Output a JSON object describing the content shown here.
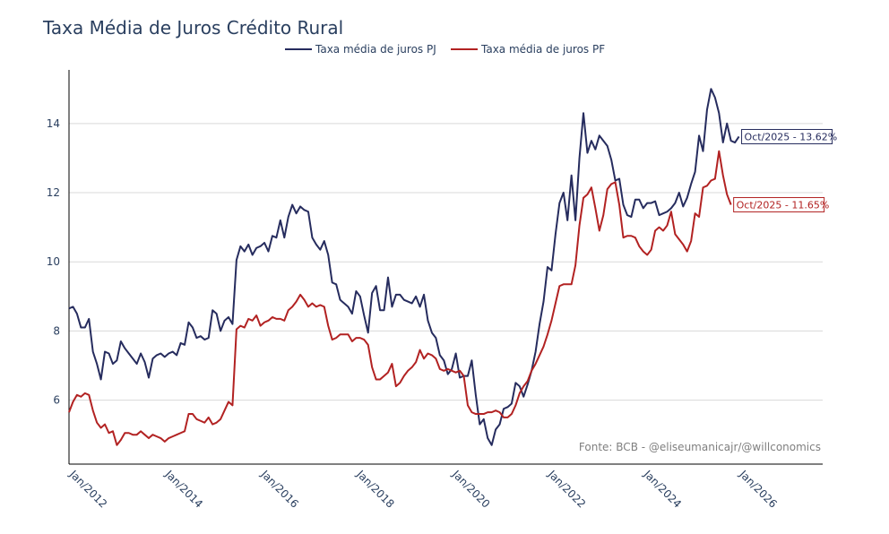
{
  "chart_data": {
    "type": "line",
    "title": "Taxa Média de Juros Crédito Rural",
    "xlabel": "",
    "ylabel": "",
    "x_start": "2012-01",
    "x_range": [
      2012.0,
      2027.75
    ],
    "ylim": [
      4.15,
      15.55
    ],
    "yticks": [
      6,
      8,
      10,
      12,
      14
    ],
    "xtick_labels": [
      "Jan/2012",
      "Jan/2014",
      "Jan/2016",
      "Jan/2018",
      "Jan/2020",
      "Jan/2022",
      "Jan/2024",
      "Jan/2026"
    ],
    "xtick_years": [
      2012,
      2014,
      2016,
      2018,
      2020,
      2022,
      2024,
      2026
    ],
    "grid": true,
    "legend_position": "top-center",
    "source_text": "Fonte: BCB - @eliseumanicajr/@willconomics",
    "series": [
      {
        "name": "Taxa média de juros PJ",
        "color": "#262c5e",
        "values": [
          8.65,
          8.7,
          8.5,
          8.1,
          8.1,
          8.35,
          7.4,
          7.05,
          6.6,
          7.4,
          7.35,
          7.05,
          7.15,
          7.7,
          7.5,
          7.35,
          7.2,
          7.05,
          7.35,
          7.1,
          6.65,
          7.2,
          7.3,
          7.35,
          7.25,
          7.35,
          7.4,
          7.3,
          7.65,
          7.6,
          8.25,
          8.1,
          7.8,
          7.85,
          7.75,
          7.8,
          8.6,
          8.5,
          8.0,
          8.3,
          8.4,
          8.2,
          10.05,
          10.45,
          10.3,
          10.5,
          10.2,
          10.4,
          10.45,
          10.55,
          10.3,
          10.75,
          10.7,
          11.2,
          10.7,
          11.3,
          11.65,
          11.4,
          11.6,
          11.5,
          11.45,
          10.7,
          10.5,
          10.35,
          10.6,
          10.2,
          9.4,
          9.35,
          8.9,
          8.8,
          8.7,
          8.5,
          9.15,
          9.0,
          8.45,
          7.95,
          9.1,
          9.3,
          8.6,
          8.6,
          9.55,
          8.7,
          9.05,
          9.05,
          8.9,
          8.85,
          8.8,
          9.0,
          8.7,
          9.05,
          8.3,
          7.95,
          7.8,
          7.3,
          7.15,
          6.75,
          6.9,
          7.35,
          6.65,
          6.7,
          6.7,
          7.15,
          6.15,
          5.3,
          5.45,
          4.9,
          4.7,
          5.15,
          5.3,
          5.75,
          5.8,
          5.9,
          6.5,
          6.4,
          6.1,
          6.45,
          6.85,
          7.4,
          8.2,
          8.85,
          9.85,
          9.75,
          10.8,
          11.7,
          12.0,
          11.2,
          12.5,
          11.2,
          13.0,
          14.3,
          13.15,
          13.5,
          13.25,
          13.65,
          13.5,
          13.35,
          12.95,
          12.35,
          12.4,
          11.65,
          11.35,
          11.3,
          11.8,
          11.8,
          11.55,
          11.7,
          11.7,
          11.75,
          11.35,
          11.4,
          11.45,
          11.55,
          11.7,
          12.0,
          11.6,
          11.85,
          12.25,
          12.6,
          13.65,
          13.2,
          14.4,
          15.0,
          14.75,
          14.3,
          13.45,
          14.0,
          13.5,
          13.45,
          13.62
        ]
      },
      {
        "name": "Taxa média de juros PF",
        "color": "#b22222",
        "values": [
          5.65,
          5.95,
          6.15,
          6.1,
          6.2,
          6.15,
          5.7,
          5.35,
          5.2,
          5.3,
          5.05,
          5.1,
          4.7,
          4.85,
          5.05,
          5.05,
          5.0,
          5.0,
          5.1,
          5.0,
          4.9,
          5.0,
          4.95,
          4.9,
          4.8,
          4.9,
          4.95,
          5.0,
          5.05,
          5.1,
          5.6,
          5.6,
          5.45,
          5.4,
          5.35,
          5.5,
          5.3,
          5.35,
          5.45,
          5.7,
          5.95,
          5.85,
          8.05,
          8.15,
          8.1,
          8.35,
          8.3,
          8.45,
          8.15,
          8.25,
          8.3,
          8.4,
          8.35,
          8.35,
          8.3,
          8.6,
          8.7,
          8.85,
          9.05,
          8.9,
          8.7,
          8.8,
          8.7,
          8.75,
          8.7,
          8.15,
          7.75,
          7.8,
          7.9,
          7.9,
          7.9,
          7.7,
          7.8,
          7.8,
          7.75,
          7.6,
          6.95,
          6.6,
          6.6,
          6.7,
          6.8,
          7.05,
          6.4,
          6.5,
          6.7,
          6.85,
          6.95,
          7.1,
          7.45,
          7.2,
          7.35,
          7.3,
          7.2,
          6.9,
          6.85,
          6.9,
          6.85,
          6.8,
          6.85,
          6.7,
          5.85,
          5.65,
          5.6,
          5.6,
          5.6,
          5.65,
          5.65,
          5.7,
          5.65,
          5.5,
          5.5,
          5.6,
          5.85,
          6.2,
          6.4,
          6.55,
          6.85,
          7.05,
          7.3,
          7.55,
          7.9,
          8.3,
          8.8,
          9.3,
          9.35,
          9.35,
          9.35,
          9.9,
          11.05,
          11.85,
          11.95,
          12.15,
          11.55,
          10.9,
          11.35,
          12.1,
          12.25,
          12.3,
          11.65,
          10.7,
          10.75,
          10.75,
          10.7,
          10.45,
          10.3,
          10.2,
          10.35,
          10.9,
          11.0,
          10.9,
          11.05,
          11.45,
          10.8,
          10.65,
          10.5,
          10.3,
          10.6,
          11.4,
          11.3,
          12.15,
          12.2,
          12.35,
          12.4,
          13.2,
          12.5,
          11.95,
          11.65
        ]
      }
    ],
    "annotations": [
      {
        "series": 0,
        "text": "Oct/2025 - 13.62%"
      },
      {
        "series": 1,
        "text": "Oct/2025 - 11.65%"
      }
    ]
  }
}
